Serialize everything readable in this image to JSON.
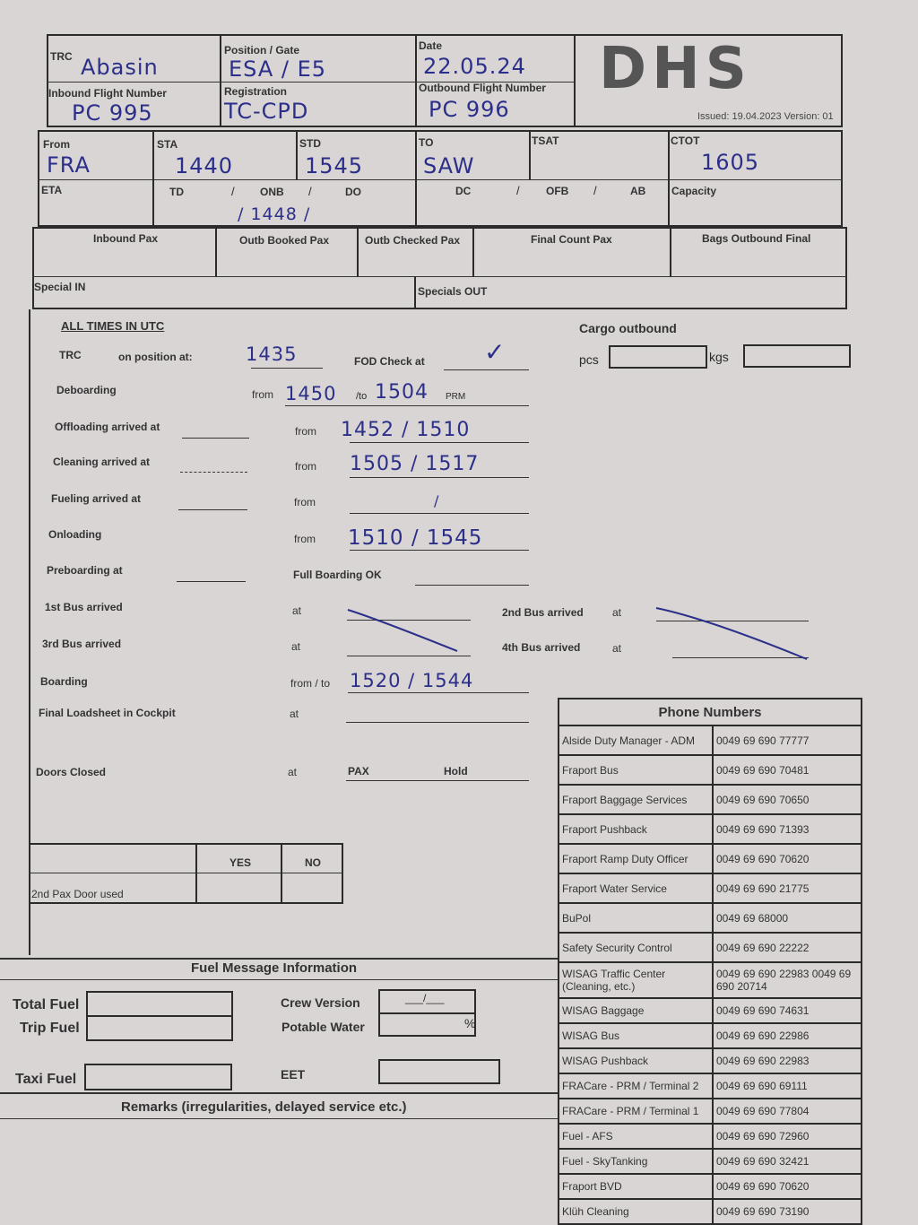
{
  "header": {
    "trc_label": "TRC",
    "trc_value": "Abasin",
    "position_label": "Position / Gate",
    "position_value": "ESA / E5",
    "date_label": "Date",
    "date_value": "22.05.24",
    "inbound_label": "Inbound Flight Number",
    "inbound_value": "PC 995",
    "registration_label": "Registration",
    "registration_value": "TC-CPD",
    "outbound_label": "Outbound Flight Number",
    "outbound_value": "PC 996",
    "logo": "DHS",
    "issued": "Issued: 19.04.2023 Version: 01"
  },
  "flight": {
    "from_label": "From",
    "from_value": "FRA",
    "sta_label": "STA",
    "sta_value": "1440",
    "std_label": "STD",
    "std_value": "1545",
    "to_label": "TO",
    "to_value": "SAW",
    "tsat_label": "TSAT",
    "ctot_label": "CTOT",
    "ctot_value": "1605",
    "eta_label": "ETA",
    "td_label": "TD",
    "onb_label": "ONB",
    "do_label": "DO",
    "onb_value": "/ 1448 /",
    "dc_label": "DC",
    "ofb_label": "OFB",
    "ab_label": "AB",
    "capacity_label": "Capacity",
    "inbound_pax": "Inbound Pax",
    "outb_booked": "Outb Booked Pax",
    "outb_checked": "Outb Checked Pax",
    "final_count": "Final Count Pax",
    "bags_final": "Bags Outbound Final",
    "special_in": "Special IN",
    "specials_out": "Specials OUT"
  },
  "times": {
    "heading": "ALL TIMES IN UTC",
    "trc": "TRC",
    "on_position": "on position at:",
    "on_position_value": "1435",
    "fod": "FOD Check at",
    "fod_value": "✓",
    "deboarding": "Deboarding",
    "from": "from",
    "deb_from": "1450",
    "to": "/to",
    "deb_to": "1504",
    "prm": "PRM",
    "offloading": "Offloading arrived at",
    "offloading_value": "1452 / 1510",
    "cleaning": "Cleaning arrived at",
    "cleaning_value": "1505 / 1517",
    "fueling": "Fueling arrived at",
    "fueling_value": "/",
    "onloading": "Onloading",
    "onloading_value": "1510 / 1545",
    "preboarding": "Preboarding at",
    "full_boarding": "Full Boarding OK",
    "bus1": "1st Bus arrived",
    "bus2": "2nd Bus arrived",
    "bus3": "3rd Bus arrived",
    "bus4": "4th Bus arrived",
    "at": "at",
    "boarding": "Boarding",
    "from_to": "from / to",
    "boarding_value": "1520 / 1544",
    "loadsheet": "Final Loadsheet in Cockpit",
    "doors": "Doors Closed",
    "pax": "PAX",
    "hold": "Hold"
  },
  "cargo": {
    "title": "Cargo outbound",
    "pcs": "pcs",
    "kgs": "kgs"
  },
  "pax_door": {
    "yes": "YES",
    "no": "NO",
    "label": "2nd Pax Door used"
  },
  "fuel": {
    "title": "Fuel Message Information",
    "total": "Total Fuel",
    "trip": "Trip Fuel",
    "taxi": "Taxi Fuel",
    "crew": "Crew Version",
    "crew_value": "___/___",
    "water": "Potable Water",
    "water_unit": "%",
    "eet": "EET",
    "remarks": "Remarks (irregularities, delayed service etc.)"
  },
  "phones": {
    "title": "Phone Numbers",
    "rows": [
      {
        "name": "Alside Duty Manager - ADM",
        "number": "0049 69 690 77777"
      },
      {
        "name": "Fraport Bus",
        "number": "0049 69 690 70481"
      },
      {
        "name": "Fraport Baggage Services",
        "number": "0049 69 690 70650"
      },
      {
        "name": "Fraport Pushback",
        "number": "0049 69 690 71393"
      },
      {
        "name": "Fraport Ramp Duty Officer",
        "number": "0049 69 690 70620"
      },
      {
        "name": "Fraport Water Service",
        "number": "0049 69 690 21775"
      },
      {
        "name": "BuPol",
        "number": "0049 69 68000"
      },
      {
        "name": "Safety Security Control",
        "number": "0049 69 690 22222"
      },
      {
        "name": "WISAG Traffic Center (Cleaning, etc.)",
        "number": "0049 69 690 22983 0049 69 690 20714"
      },
      {
        "name": "WISAG Baggage",
        "number": "0049 69 690 74631"
      },
      {
        "name": "WISAG Bus",
        "number": "0049 69 690 22986"
      },
      {
        "name": "WISAG Pushback",
        "number": "0049 69 690 22983"
      },
      {
        "name": "FRACare - PRM / Terminal 2",
        "number": "0049 69 690 69111"
      },
      {
        "name": "FRACare - PRM / Terminal 1",
        "number": "0049 69 690 77804"
      },
      {
        "name": "Fuel - AFS",
        "number": "0049 69 690 72960"
      },
      {
        "name": "Fuel - SkyTanking",
        "number": "0049 69 690 32421"
      },
      {
        "name": "Fraport BVD",
        "number": "0049 69 690 70620"
      },
      {
        "name": "Klüh Cleaning",
        "number": "0049 69 690 73190"
      }
    ]
  }
}
